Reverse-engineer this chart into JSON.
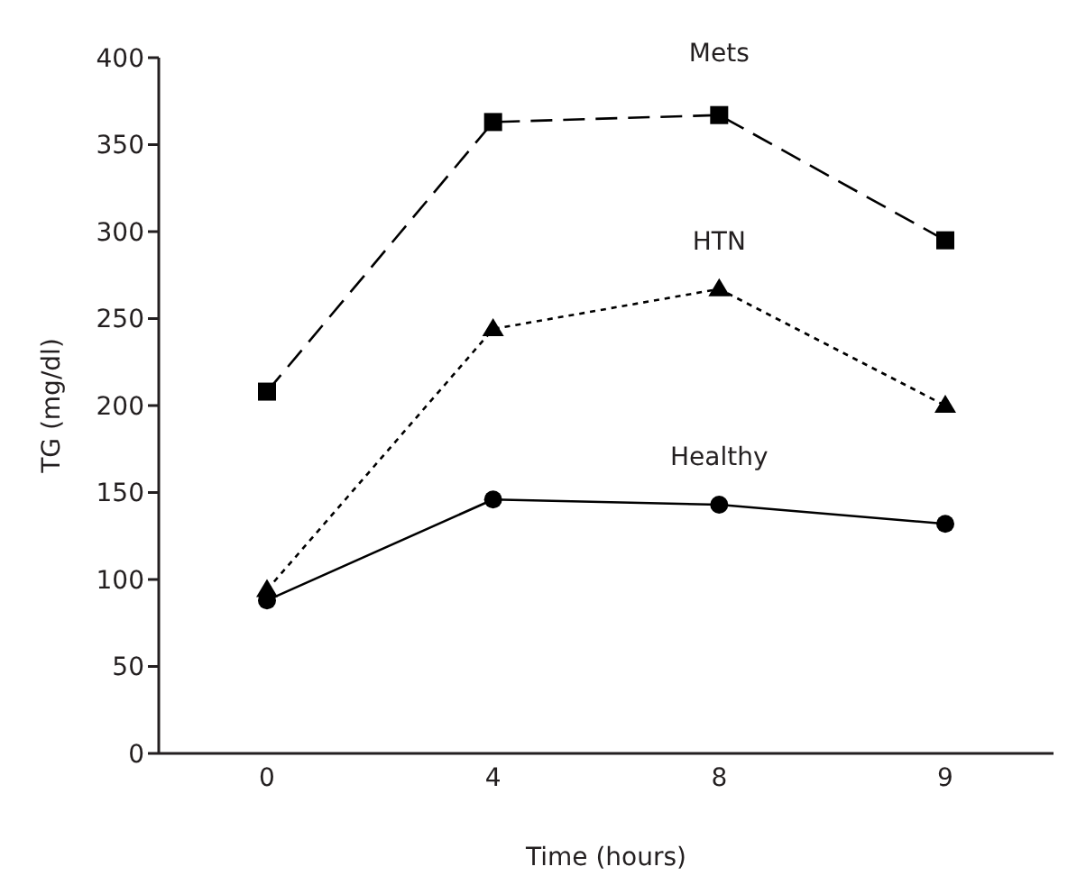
{
  "chart_data": {
    "type": "line",
    "xlabel": "Time (hours)",
    "ylabel": "TG (mg/dl)",
    "categories": [
      "0",
      "4",
      "8",
      "9"
    ],
    "series": [
      {
        "name": "Mets",
        "color": "#000000",
        "marker": "square",
        "line_style": "dashed",
        "values": [
          208,
          363,
          367,
          295
        ]
      },
      {
        "name": "HTN",
        "color": "#000000",
        "marker": "triangle",
        "line_style": "dotted",
        "values": [
          94,
          244,
          267,
          200
        ]
      },
      {
        "name": "Healthy",
        "color": "#000000",
        "marker": "circle",
        "line_style": "solid",
        "values": [
          88,
          146,
          143,
          132
        ]
      }
    ],
    "ylim": [
      0,
      400
    ],
    "yticks": [
      0,
      50,
      100,
      150,
      200,
      250,
      300,
      350,
      400
    ],
    "grid": false
  }
}
